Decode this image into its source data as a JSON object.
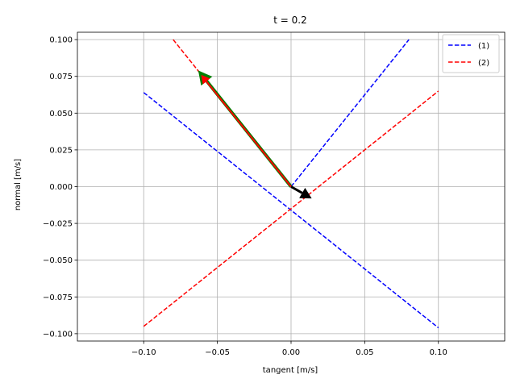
{
  "chart_data": {
    "type": "line",
    "title": "t = 0.2",
    "xlabel": "tangent [m/s]",
    "ylabel": "normal [m/s]",
    "xlim": [
      -0.145,
      0.145
    ],
    "ylim": [
      -0.105,
      0.105
    ],
    "xticks": [
      -0.1,
      -0.05,
      0.0,
      0.05,
      0.1
    ],
    "xtick_labels": [
      "−0.10",
      "−0.05",
      "0.00",
      "0.05",
      "0.10"
    ],
    "yticks": [
      0.1,
      0.075,
      0.05,
      0.025,
      0.0,
      -0.025,
      -0.05,
      -0.075,
      -0.1
    ],
    "ytick_labels": [
      "0.100",
      "0.075",
      "0.050",
      "0.025",
      "0.000",
      "−0.025",
      "−0.050",
      "−0.075",
      "−0.100"
    ],
    "grid": true,
    "legend_position": "top-right",
    "series": [
      {
        "name": "(1)",
        "style": "dashed",
        "color": "#0000ff",
        "segments": [
          [
            [
              -0.1,
              0.064
            ],
            [
              0.1,
              -0.096
            ]
          ],
          [
            [
              0.0,
              0.0
            ],
            [
              0.08,
              0.1
            ]
          ]
        ]
      },
      {
        "name": "(2)",
        "style": "dashed",
        "color": "#ff0000",
        "segments": [
          [
            [
              -0.1,
              -0.095
            ],
            [
              0.1,
              0.065
            ]
          ],
          [
            [
              -0.08,
              0.1
            ],
            [
              0.0,
              0.0
            ]
          ]
        ]
      }
    ],
    "arrows": [
      {
        "color": "#007f00",
        "from": [
          0.0,
          0.0
        ],
        "to": [
          -0.063,
          0.079
        ],
        "width": 4
      },
      {
        "color": "#ff0000",
        "from": [
          0.0,
          0.0
        ],
        "to": [
          -0.061,
          0.076
        ],
        "width": 2
      },
      {
        "color": "#000000",
        "from": [
          0.0,
          0.0
        ],
        "to": [
          0.014,
          -0.008
        ],
        "width": 3
      }
    ]
  }
}
